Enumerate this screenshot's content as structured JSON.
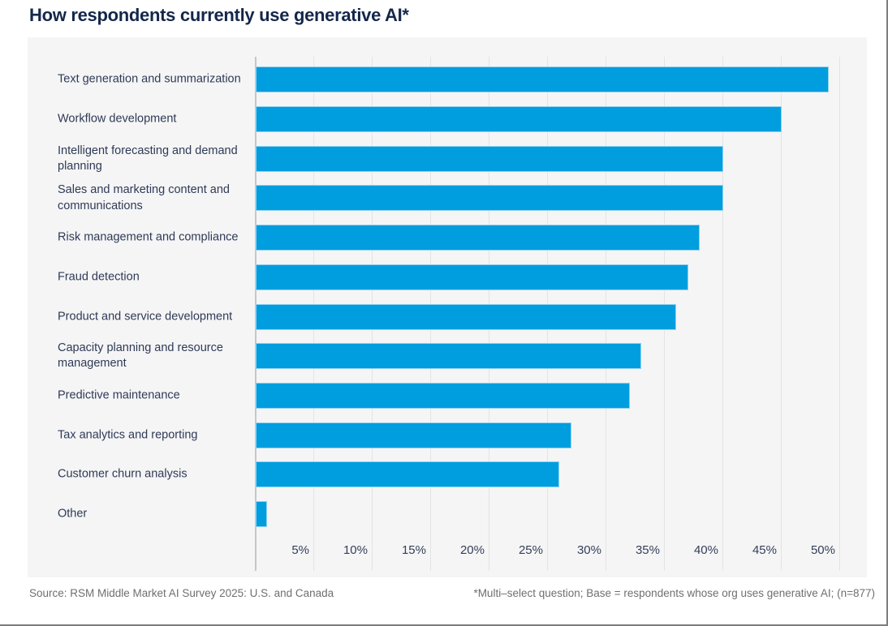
{
  "page": {
    "title": "How respondents currently use generative AI*",
    "source": "Source: RSM Middle Market AI Survey 2025: U.S. and Canada",
    "footnote": "*Multi–select question; Base = respondents whose org uses generative AI; (n=877)"
  },
  "colors": {
    "bar_fill": "#009ddf",
    "bar_border": "#90d1f0",
    "title_navy": "#14274b",
    "label_navy": "#2e3a55",
    "panel_background": "#f5f5f6",
    "gridline": "#e4e4e7",
    "axis_line": "#c7c7ca",
    "footer_gray": "#6e6f71"
  },
  "chart_data": {
    "type": "bar",
    "orientation": "horizontal",
    "title": "How respondents currently use generative AI*",
    "categories": [
      "Text generation and summarization",
      "Workflow development",
      "Intelligent forecasting and demand planning",
      "Sales and marketing content and communications",
      "Risk management and compliance",
      "Fraud detection",
      "Product and service development",
      "Capacity planning and resource management",
      "Predictive maintenance",
      "Tax analytics and reporting",
      "Customer churn analysis",
      "Other"
    ],
    "values": [
      49,
      45,
      40,
      40,
      38,
      37,
      36,
      33,
      32,
      27,
      26,
      1
    ],
    "unit": "%",
    "xlabel": "",
    "ylabel": "",
    "xlim": [
      0,
      50
    ],
    "xticks": [
      "5%",
      "10%",
      "15%",
      "20%",
      "25%",
      "30%",
      "35%",
      "40%",
      "45%",
      "50%"
    ],
    "xtick_values": [
      5,
      10,
      15,
      20,
      25,
      30,
      35,
      40,
      45,
      50
    ],
    "grid": true,
    "legend": false,
    "source": "Source: RSM Middle Market AI Survey 2025: U.S. and Canada",
    "footnote": "*Multi–select question; Base = respondents whose org uses generative AI; (n=877)"
  }
}
